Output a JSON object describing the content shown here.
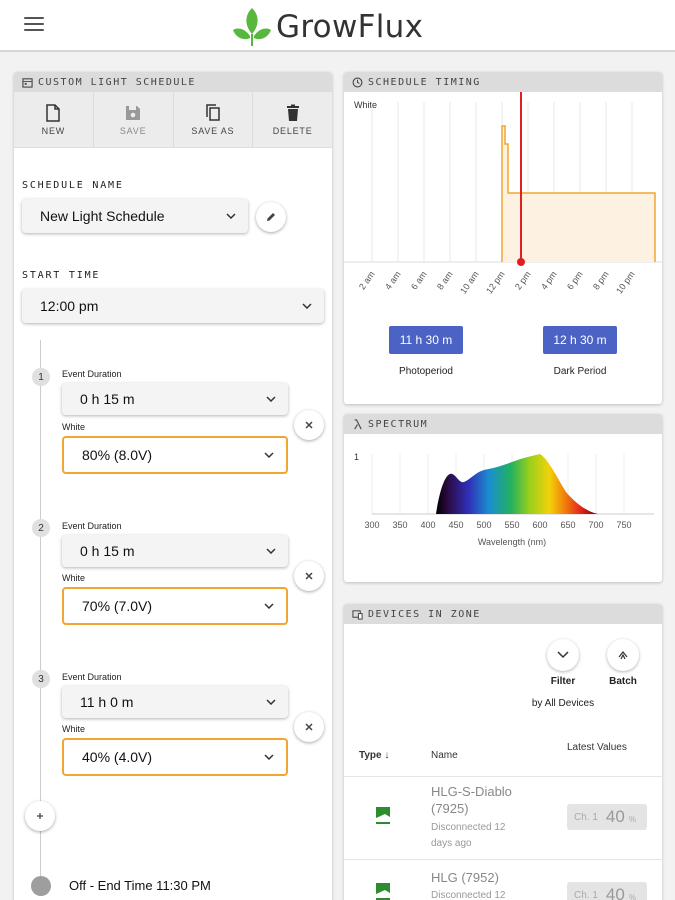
{
  "app": {
    "brand": "GrowFlux",
    "colors": {
      "accent": "#4a63c5",
      "leaf": "#57b83d",
      "orange": "#f2a531",
      "red": "#e02020"
    }
  },
  "schedule_card": {
    "title": "CUSTOM LIGHT SCHEDULE",
    "toolbar": {
      "new": "NEW",
      "save": "SAVE",
      "save_as": "SAVE AS",
      "delete": "DELETE"
    },
    "name_label": "SCHEDULE NAME",
    "name_value": "New Light Schedule",
    "start_label": "START TIME",
    "start_value": "12:00 pm",
    "events": [
      {
        "num": "1",
        "duration_label": "Event Duration",
        "duration": "0 h 15 m",
        "channel": "White",
        "level": "80% (8.0V)"
      },
      {
        "num": "2",
        "duration_label": "Event Duration",
        "duration": "0 h 15 m",
        "channel": "White",
        "level": "70% (7.0V)"
      },
      {
        "num": "3",
        "duration_label": "Event Duration",
        "duration": "11 h 0 m",
        "channel": "White",
        "level": "40% (4.0V)"
      }
    ],
    "end_text": "Off - End Time 11:30 PM"
  },
  "timing_card": {
    "title": "SCHEDULE TIMING",
    "series_label": "White",
    "x_labels": [
      "2 am",
      "4 am",
      "6 am",
      "8 am",
      "10 am",
      "12 pm",
      "2 pm",
      "4 pm",
      "6 pm",
      "8 pm",
      "10 pm"
    ],
    "photoperiod": "11 h 30 m",
    "photoperiod_label": "Photoperiod",
    "dark": "12 h 30 m",
    "dark_label": "Dark Period"
  },
  "spectrum_card": {
    "title": "SPECTRUM",
    "y_label": "1",
    "x_ticks": [
      "300",
      "350",
      "400",
      "450",
      "500",
      "550",
      "600",
      "650",
      "700",
      "750"
    ],
    "x_axis_label": "Wavelength (nm)"
  },
  "devices_card": {
    "title": "DEVICES IN ZONE",
    "filter_label": "Filter",
    "filter_sub": "by All Devices",
    "batch_label": "Batch",
    "col_type": "Type",
    "col_name": "Name",
    "col_values": "Latest Values",
    "devices": [
      {
        "name_1": "HLG-S-Diablo",
        "name_2": "(7925)",
        "status_1": "Disconnected 12",
        "status_2": "days ago",
        "chip_label": "Ch. 1",
        "chip_value": "40",
        "chip_unit": "%"
      },
      {
        "name_1": "HLG (7952)",
        "name_2": "",
        "status_1": "Disconnected 12",
        "status_2": "",
        "chip_label": "Ch. 1",
        "chip_value": "40",
        "chip_unit": "%"
      }
    ]
  }
}
